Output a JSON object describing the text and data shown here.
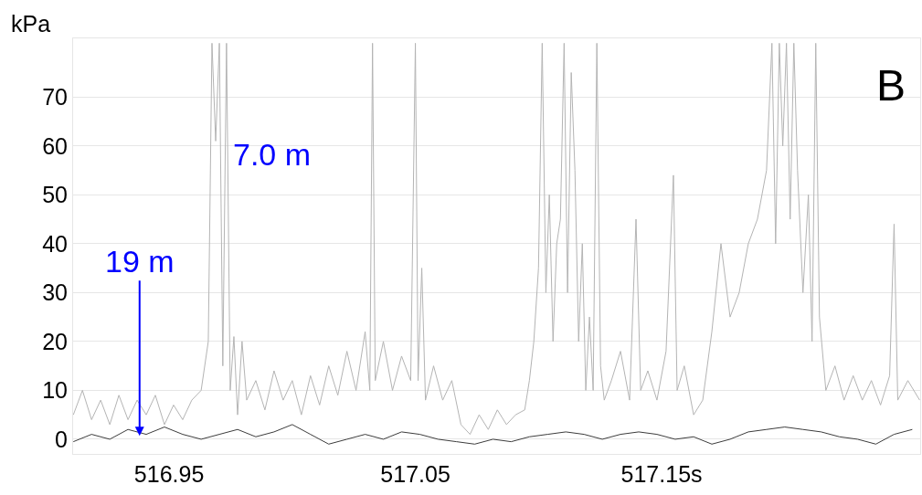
{
  "chart_data": {
    "type": "line",
    "ylabel": "kPa",
    "xlim": [
      516.911,
      517.255
    ],
    "ylim": [
      -3,
      82
    ],
    "xticks": [
      516.95,
      517.05,
      {
        "value": 517.15,
        "label": "517.15s"
      }
    ],
    "yticks": [
      0,
      10,
      20,
      30,
      40,
      50,
      60,
      70
    ],
    "grid": "y",
    "legend": false,
    "series": [
      {
        "color": "#b4b4b4",
        "x": [
          516.9111,
          516.9148,
          516.9185,
          516.9222,
          516.9259,
          516.9296,
          516.9333,
          516.937,
          516.9407,
          516.9444,
          516.9481,
          516.9518,
          516.9555,
          516.9592,
          516.963,
          516.9659,
          516.9674,
          516.9689,
          516.9704,
          516.9718,
          516.9733,
          516.9748,
          516.9763,
          516.9778,
          516.9796,
          516.9815,
          516.9852,
          516.9889,
          516.9926,
          516.9963,
          517.0,
          517.0037,
          517.0074,
          517.0111,
          517.0148,
          517.0185,
          517.0222,
          517.0259,
          517.0296,
          517.0315,
          517.0326,
          517.0337,
          517.037,
          517.0407,
          517.0444,
          517.0481,
          517.05,
          517.0511,
          517.0526,
          517.0541,
          517.0574,
          517.0611,
          517.0648,
          517.0685,
          517.0722,
          517.0759,
          517.0796,
          517.0833,
          517.087,
          517.0907,
          517.0944,
          517.0963,
          517.0981,
          517.1,
          517.1015,
          517.103,
          517.1044,
          517.1059,
          517.1074,
          517.1089,
          517.1104,
          517.1118,
          517.1133,
          517.1148,
          517.1163,
          517.1178,
          517.1192,
          517.1207,
          517.1222,
          517.1237,
          517.1252,
          517.1267,
          517.1296,
          517.1333,
          517.137,
          517.1396,
          517.1415,
          517.1444,
          517.1481,
          517.1518,
          517.1548,
          517.1563,
          517.1592,
          517.163,
          517.1667,
          517.1704,
          517.1741,
          517.1778,
          517.1815,
          517.1852,
          517.1889,
          517.1926,
          517.1948,
          517.1963,
          517.1978,
          517.1992,
          517.2007,
          517.2022,
          517.2037,
          517.2052,
          517.2074,
          517.2096,
          517.2111,
          517.2126,
          517.2141,
          517.2167,
          517.2204,
          517.2241,
          517.2278,
          517.2315,
          517.2352,
          517.2389,
          517.2426,
          517.2444,
          517.2459,
          517.25,
          517.2548
        ],
        "values": [
          5,
          10,
          4,
          8,
          3,
          9,
          4,
          8,
          5,
          9,
          3,
          7,
          4,
          8,
          10,
          20,
          81,
          61,
          81,
          15,
          81,
          10,
          21,
          5,
          20,
          8,
          12,
          6,
          14,
          8,
          12,
          5,
          13,
          7,
          15,
          9,
          18,
          10,
          22,
          10,
          81,
          12,
          20,
          10,
          17,
          12,
          81,
          12,
          35,
          8,
          15,
          8,
          12,
          3,
          1,
          5,
          2,
          6,
          3,
          5,
          6,
          12,
          20,
          35,
          81,
          30,
          50,
          20,
          40,
          45,
          81,
          30,
          75,
          55,
          20,
          40,
          10,
          25,
          10,
          81,
          15,
          8,
          12,
          18,
          8,
          45,
          10,
          14,
          8,
          18,
          54,
          10,
          15,
          5,
          8,
          22,
          40,
          25,
          30,
          40,
          45,
          55,
          81,
          40,
          81,
          60,
          81,
          45,
          81,
          55,
          30,
          50,
          20,
          81,
          25,
          10,
          15,
          8,
          13,
          8,
          12,
          7,
          13,
          44,
          8,
          12,
          8
        ]
      },
      {
        "color": "#3c3c3c",
        "x": [
          516.9111,
          516.9185,
          516.9259,
          516.9333,
          516.9407,
          516.9481,
          516.9555,
          516.963,
          516.9704,
          516.9778,
          516.9852,
          516.9926,
          517.0,
          517.0074,
          517.0148,
          517.0222,
          517.0296,
          517.037,
          517.0444,
          517.0518,
          517.0592,
          517.0667,
          517.0741,
          517.0815,
          517.0889,
          517.0963,
          517.1037,
          517.1111,
          517.1185,
          517.1259,
          517.1333,
          517.1407,
          517.1481,
          517.1555,
          517.163,
          517.1704,
          517.1778,
          517.1852,
          517.1926,
          517.2,
          517.2074,
          517.2148,
          517.2222,
          517.2296,
          517.237,
          517.2444,
          517.2518
        ],
        "values": [
          -0.5,
          1,
          0,
          2,
          1,
          2.5,
          1,
          0,
          1,
          2,
          0.5,
          1.5,
          3,
          1,
          -1,
          0,
          1,
          0,
          1.5,
          1,
          0,
          -0.5,
          -1,
          0,
          -0.5,
          0.5,
          1,
          1.5,
          1,
          0,
          1,
          1.5,
          1,
          0,
          0.5,
          -1,
          0,
          1.5,
          2,
          2.5,
          2,
          1.5,
          0.5,
          0,
          -1,
          1,
          2
        ]
      }
    ],
    "annotations": [
      "B",
      "7.0 m",
      {
        "text": "19 m",
        "x": 516.938,
        "y": 0.7
      }
    ]
  }
}
